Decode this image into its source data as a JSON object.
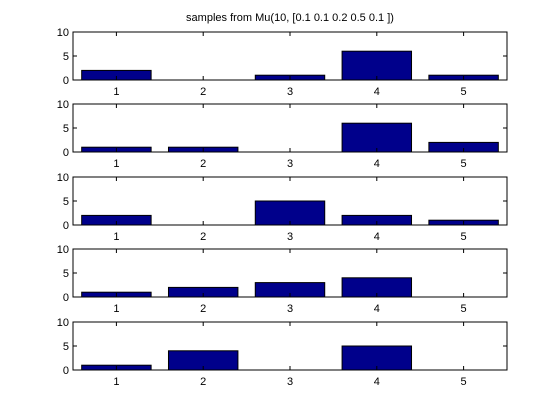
{
  "chart_data": {
    "type": "bar",
    "title": "samples from Mu(10, [0.1 0.1 0.2 0.5 0.1 ])",
    "categories": [
      "1",
      "2",
      "3",
      "4",
      "5"
    ],
    "ylim": [
      0,
      10
    ],
    "yticks": [
      "0",
      "5",
      "10"
    ],
    "grid": false,
    "bar_color": "#00008b",
    "panels": [
      {
        "values": [
          2,
          0,
          1,
          6,
          1
        ]
      },
      {
        "values": [
          1,
          1,
          0,
          6,
          2
        ]
      },
      {
        "values": [
          2,
          0,
          5,
          2,
          1
        ]
      },
      {
        "values": [
          1,
          2,
          3,
          4,
          0
        ]
      },
      {
        "values": [
          1,
          4,
          0,
          5,
          0
        ]
      }
    ]
  }
}
